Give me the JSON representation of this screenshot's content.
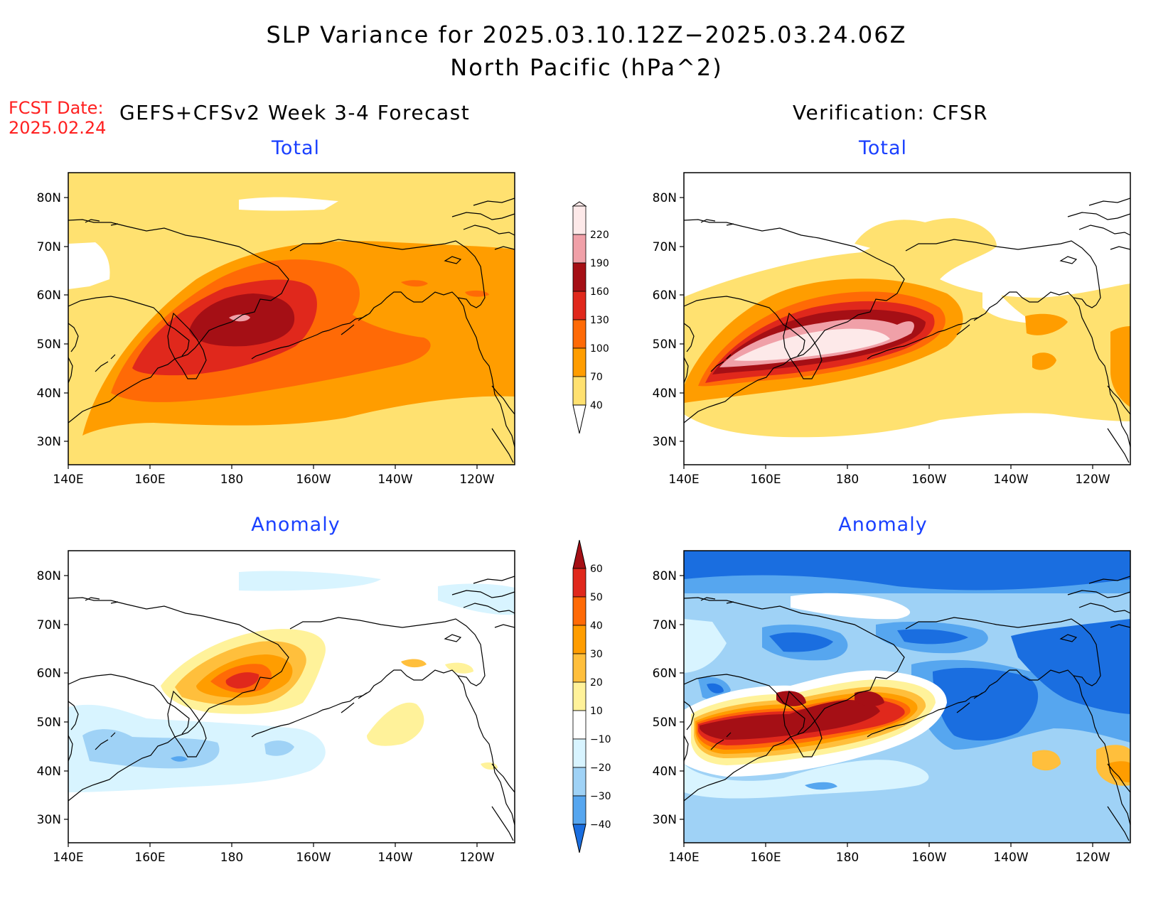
{
  "title": {
    "line1": "SLP Variance for 2025.03.10.12Z−2025.03.24.06Z",
    "line2": "North Pacific (hPa^2)"
  },
  "forecast_date": {
    "label": "FCST Date:",
    "value": "2025.02.24"
  },
  "left_heading": "GEFS+CFSv2 Week 3-4 Forecast",
  "right_heading": "Verification: CFSR",
  "panels": {
    "top_left": "Total",
    "top_right": "Total",
    "bottom_left": "Anomaly",
    "bottom_right": "Anomaly"
  },
  "axes": {
    "lat_ticks": [
      "80N",
      "70N",
      "60N",
      "50N",
      "40N",
      "30N"
    ],
    "lon_ticks": [
      "140E",
      "160E",
      "180",
      "160W",
      "140W",
      "120W"
    ]
  },
  "total_colorbar": {
    "labels": [
      "220",
      "190",
      "160",
      "130",
      "100",
      "70",
      "40"
    ],
    "colors": [
      "#fde9e9",
      "#f0a0a8",
      "#a50f15",
      "#e0281c",
      "#ff6a06",
      "#ff9d00",
      "#ffe170"
    ]
  },
  "anomaly_colorbar": {
    "labels": [
      "60",
      "50",
      "40",
      "30",
      "20",
      "10",
      "−10",
      "−20",
      "−30",
      "−40"
    ],
    "colors": [
      "#a50f15",
      "#e0281c",
      "#ff6a06",
      "#ff9d00",
      "#ffbf3c",
      "#fff29a",
      "#ffffff",
      "#d8f4ff",
      "#9fd2f6",
      "#56a6ef",
      "#1a6ee0"
    ]
  },
  "colors": {
    "land_outline": "#000000",
    "title_blue": "#1a40ff",
    "forecast_red": "#ff2020"
  }
}
